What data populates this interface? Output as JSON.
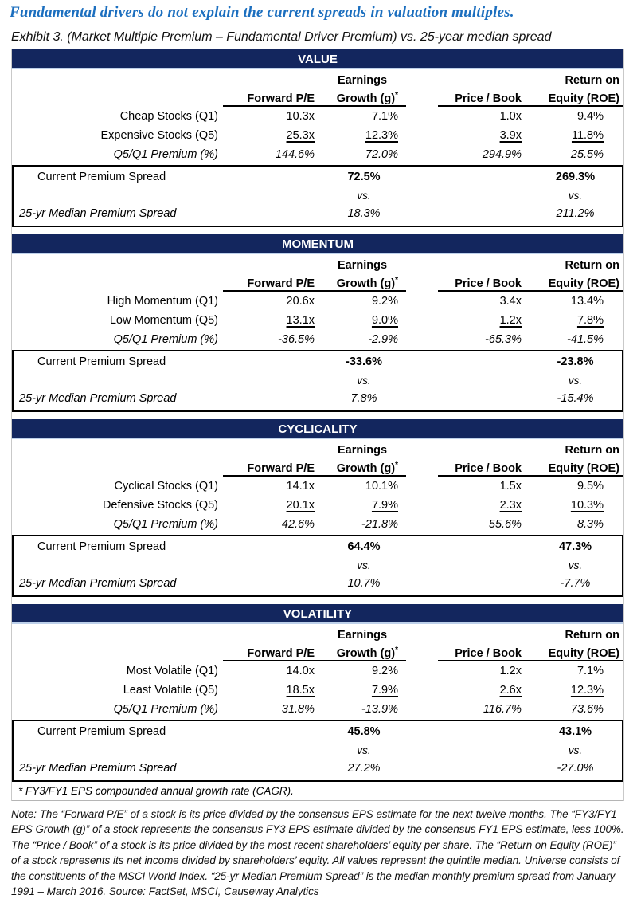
{
  "page": {
    "title": "Fundamental drivers do not explain the current spreads in valuation multiples.",
    "subtitle": "Exhibit 3. (Market Multiple Premium – Fundamental Driver Premium) vs. 25-year median spread",
    "accent_title_color": "#1c6fbf",
    "section_header_color": "#13265e"
  },
  "columns": {
    "earnings_top": "Earnings",
    "return_top": "Return on",
    "forward_pe": "Forward P/E",
    "growth": "Growth (g)",
    "growth_sup": "*",
    "price_book": "Price / Book",
    "roe": "Equity (ROE)"
  },
  "labels": {
    "current_spread": "Current Premium Spread",
    "vs": "vs.",
    "median_spread": "25-yr Median Premium Spread"
  },
  "sections": [
    {
      "title": "VALUE",
      "rows": [
        {
          "label": "Cheap Stocks (Q1)",
          "v1": "10.3x",
          "v2": "7.1%",
          "v3": "1.0x",
          "v4": "9.4%"
        },
        {
          "label": "Expensive Stocks (Q5)",
          "v1": "25.3x",
          "v2": "12.3%",
          "v3": "3.9x",
          "v4": "11.8%"
        },
        {
          "label": "Q5/Q1 Premium (%)",
          "v1": "144.6%",
          "v2": "72.0%",
          "v3": "294.9%",
          "v4": "25.5%"
        }
      ],
      "current": {
        "growth": "72.5%",
        "roe": "269.3%"
      },
      "median": {
        "growth": "18.3%",
        "roe": "211.2%"
      }
    },
    {
      "title": "MOMENTUM",
      "rows": [
        {
          "label": "High Momentum (Q1)",
          "v1": "20.6x",
          "v2": "9.2%",
          "v3": "3.4x",
          "v4": "13.4%"
        },
        {
          "label": "Low Momentum (Q5)",
          "v1": "13.1x",
          "v2": "9.0%",
          "v3": "1.2x",
          "v4": "7.8%"
        },
        {
          "label": "Q5/Q1 Premium (%)",
          "v1": "-36.5%",
          "v2": "-2.9%",
          "v3": "-65.3%",
          "v4": "-41.5%"
        }
      ],
      "current": {
        "growth": "-33.6%",
        "roe": "-23.8%"
      },
      "median": {
        "growth": "7.8%",
        "roe": "-15.4%"
      }
    },
    {
      "title": "CYCLICALITY",
      "rows": [
        {
          "label": "Cyclical Stocks (Q1)",
          "v1": "14.1x",
          "v2": "10.1%",
          "v3": "1.5x",
          "v4": "9.5%"
        },
        {
          "label": "Defensive Stocks (Q5)",
          "v1": "20.1x",
          "v2": "7.9%",
          "v3": "2.3x",
          "v4": "10.3%"
        },
        {
          "label": "Q5/Q1 Premium (%)",
          "v1": "42.6%",
          "v2": "-21.8%",
          "v3": "55.6%",
          "v4": "8.3%"
        }
      ],
      "current": {
        "growth": "64.4%",
        "roe": "47.3%"
      },
      "median": {
        "growth": "10.7%",
        "roe": "-7.7%"
      }
    },
    {
      "title": "VOLATILITY",
      "rows": [
        {
          "label": "Most Volatile (Q1)",
          "v1": "14.0x",
          "v2": "9.2%",
          "v3": "1.2x",
          "v4": "7.1%"
        },
        {
          "label": "Least Volatile (Q5)",
          "v1": "18.5x",
          "v2": "7.9%",
          "v3": "2.6x",
          "v4": "12.3%"
        },
        {
          "label": "Q5/Q1 Premium (%)",
          "v1": "31.8%",
          "v2": "-13.9%",
          "v3": "116.7%",
          "v4": "73.6%"
        }
      ],
      "current": {
        "growth": "45.8%",
        "roe": "43.1%"
      },
      "median": {
        "growth": "27.2%",
        "roe": "-27.0%"
      }
    }
  ],
  "footnote": "* FY3/FY1 EPS compounded annual growth rate (CAGR).",
  "note": "Note: The “Forward P/E” of a stock is its price divided by the consensus EPS estimate for the next twelve months.  The “FY3/FY1 EPS Growth (g)” of a stock represents the consensus FY3 EPS estimate divided by the consensus FY1 EPS estimate, less 100%.  The “Price / Book” of a stock is its price divided by the most recent shareholders’ equity per share.  The “Return on Equity (ROE)” of a stock represents its net income divided by shareholders’ equity.  All values represent the quintile median.  Universe consists of the constituents of the MSCI World Index.  “25-yr Median Premium Spread” is the median monthly premium spread from January 1991 – March 2016.  Source: FactSet, MSCI, Causeway Analytics"
}
